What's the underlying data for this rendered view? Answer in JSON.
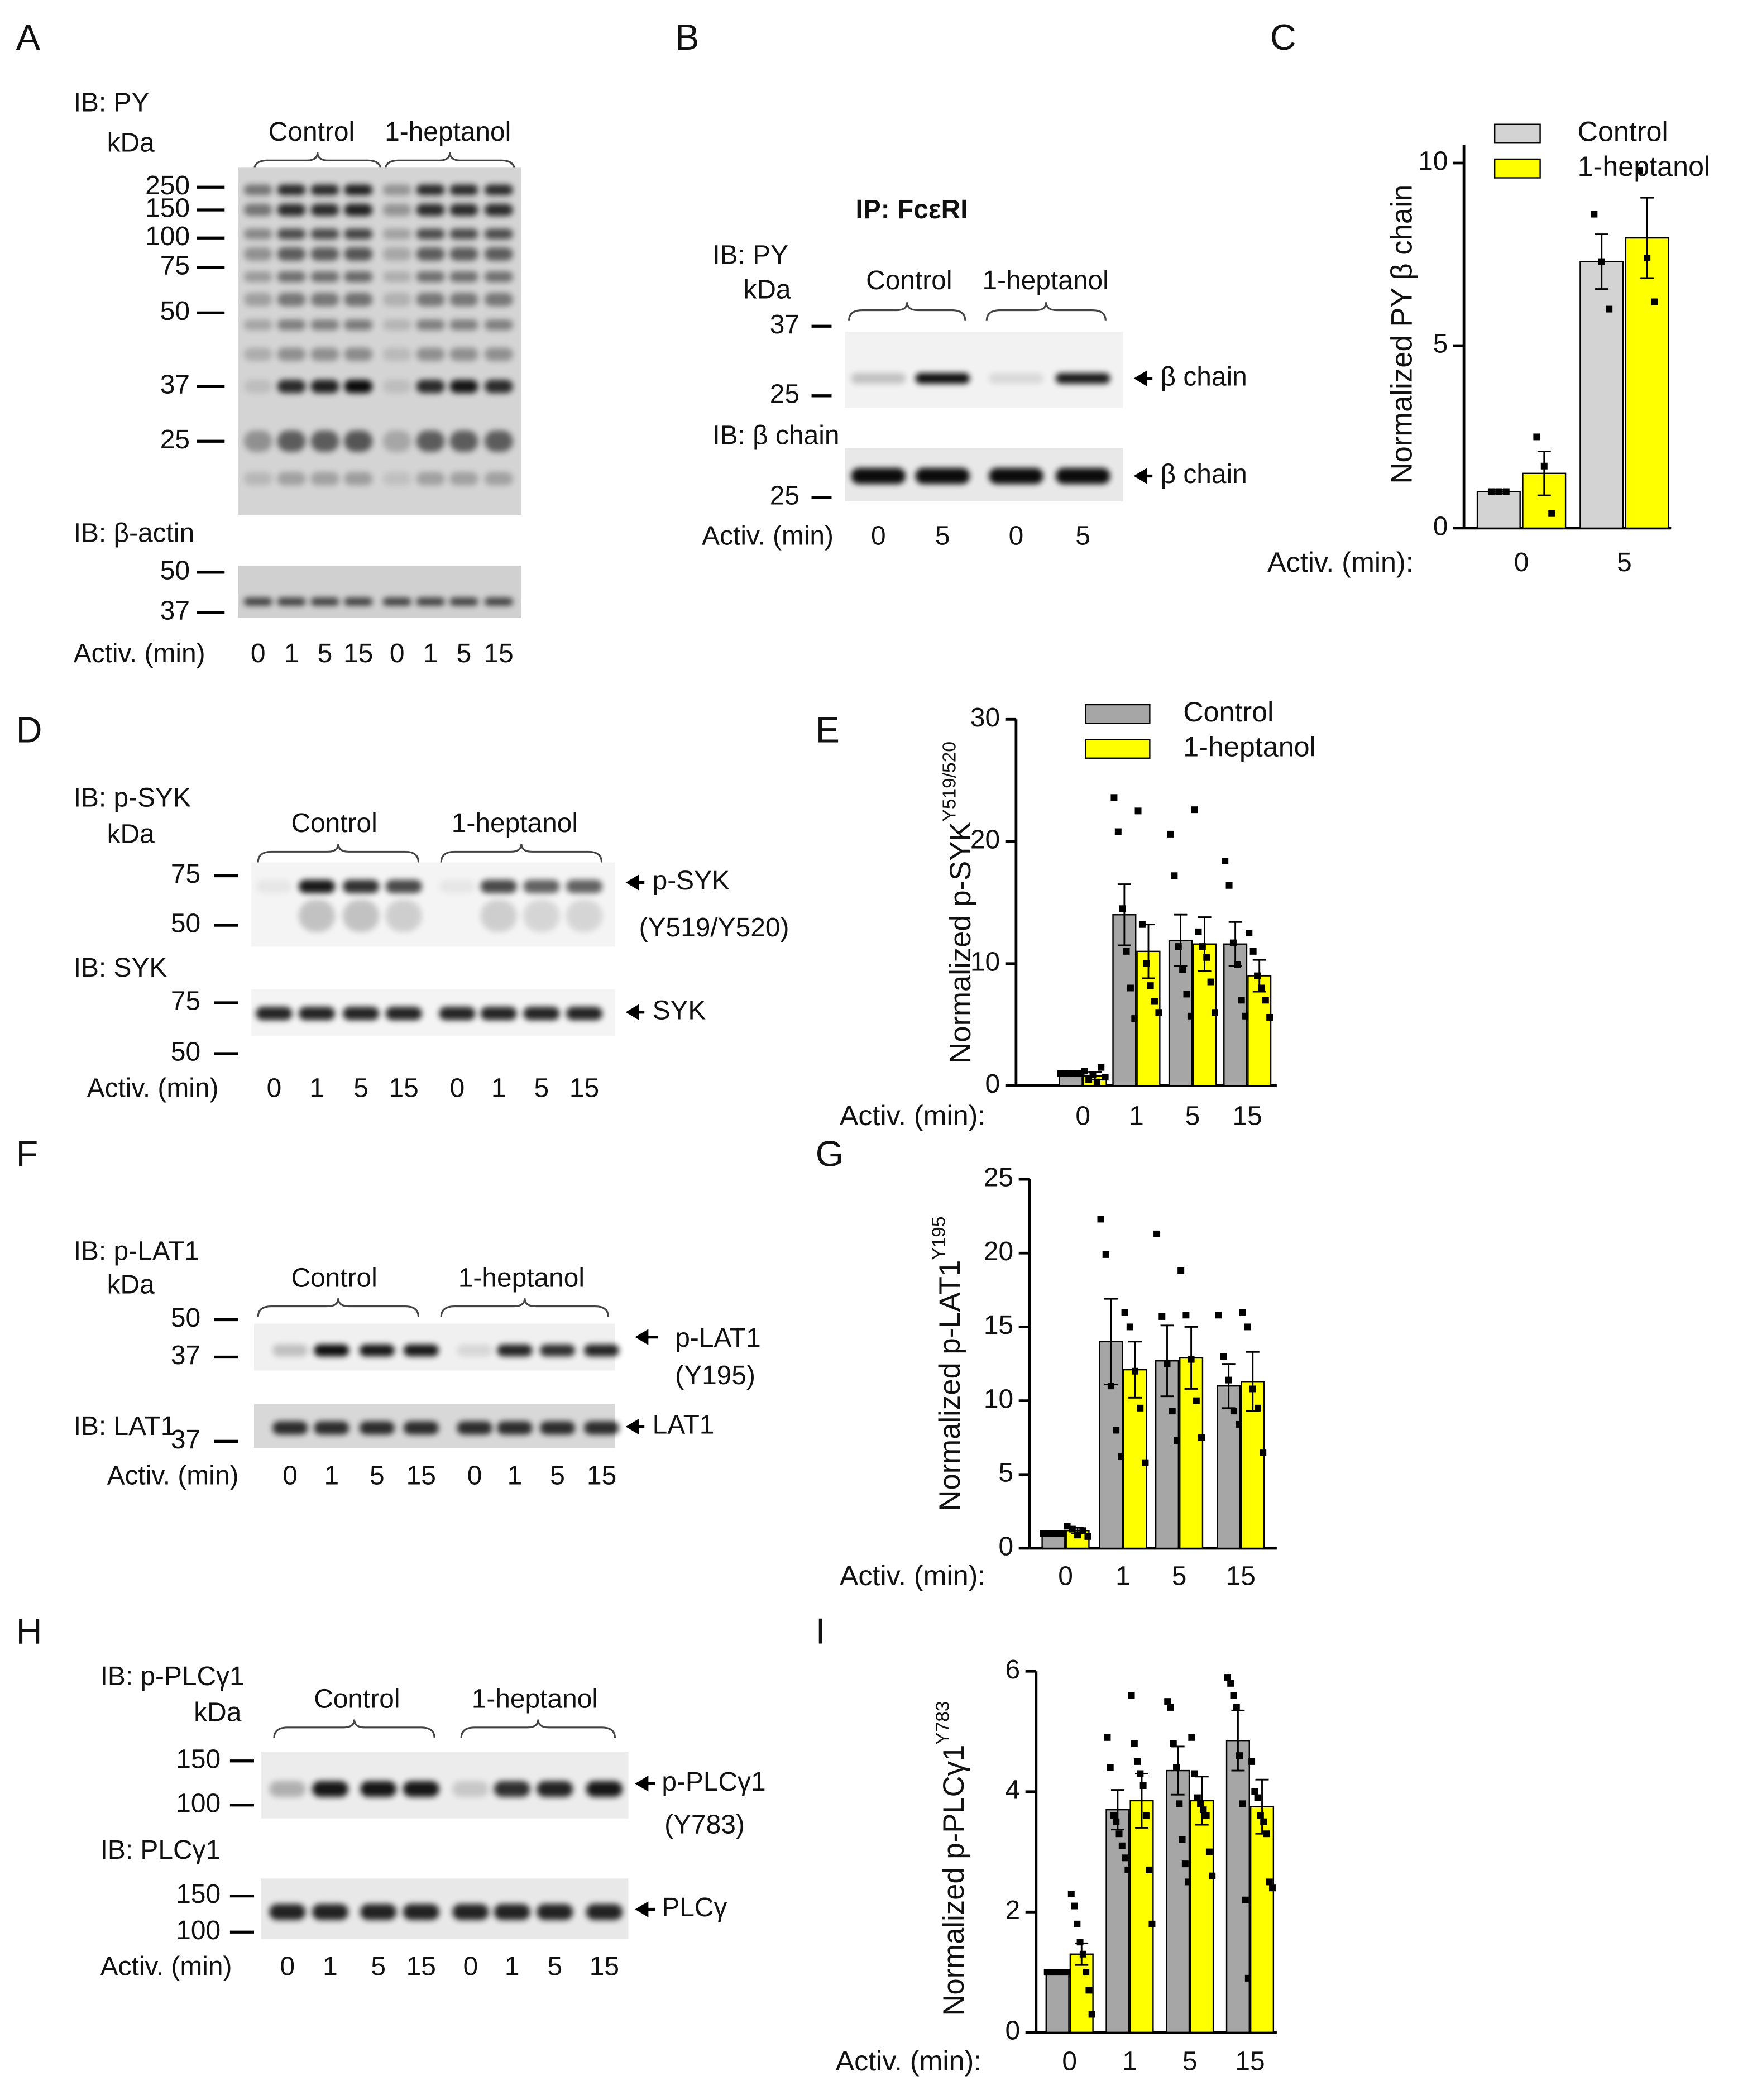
{
  "panels": {
    "A": {
      "label": "A",
      "ib": "IB: PY",
      "kda": "kDa",
      "groups": [
        "Control",
        "1-heptanol"
      ],
      "markers": [
        "250",
        "150",
        "100",
        "75",
        "50",
        "37",
        "25"
      ],
      "ib2": "IB: β-actin",
      "markers2": [
        "50",
        "37"
      ],
      "activ": "Activ. (min)",
      "lanes": [
        "0",
        "1",
        "5",
        "15",
        "0",
        "1",
        "5",
        "15"
      ]
    },
    "B": {
      "label": "B",
      "ip": "IP: FcεRI",
      "ib": "IB: PY",
      "kda": "kDa",
      "groups": [
        "Control",
        "1-heptanol"
      ],
      "markers": [
        "37",
        "25"
      ],
      "target": "β chain",
      "ib2": "IB: β chain",
      "markers2": [
        "25"
      ],
      "target2": "β chain",
      "activ": "Activ. (min)",
      "lanes": [
        "0",
        "5",
        "0",
        "5"
      ]
    },
    "D": {
      "label": "D",
      "ib": "IB: p-SYK",
      "kda": "kDa",
      "groups": [
        "Control",
        "1-heptanol"
      ],
      "markers": [
        "75",
        "50"
      ],
      "target": "p-SYK",
      "site": "(Y519/Y520)",
      "ib2": "IB: SYK",
      "markers2": [
        "75",
        "50"
      ],
      "target2": "SYK",
      "activ": "Activ. (min)",
      "lanes": [
        "0",
        "1",
        "5",
        "15",
        "0",
        "1",
        "5",
        "15"
      ]
    },
    "F": {
      "label": "F",
      "ib": "IB: p-LAT1",
      "kda": "kDa",
      "groups": [
        "Control",
        "1-heptanol"
      ],
      "markers": [
        "50",
        "37"
      ],
      "target": "p-LAT1",
      "site": "(Y195)",
      "ib2": "IB: LAT1",
      "markers2": [
        "37"
      ],
      "target2": "LAT1",
      "activ": "Activ. (min)",
      "lanes": [
        "0",
        "1",
        "5",
        "15",
        "0",
        "1",
        "5",
        "15"
      ]
    },
    "H": {
      "label": "H",
      "ib": "IB: p-PLCγ1",
      "kda": "kDa",
      "groups": [
        "Control",
        "1-heptanol"
      ],
      "markers": [
        "150",
        "100"
      ],
      "target": "p-PLCγ1",
      "site": "(Y783)",
      "ib2": "IB: PLCγ1",
      "markers2": [
        "150",
        "100"
      ],
      "target2": "PLCγ",
      "activ": "Activ. (min)",
      "lanes": [
        "0",
        "1",
        "5",
        "15",
        "0",
        "1",
        "5",
        "15"
      ]
    }
  },
  "chart_data": [
    {
      "type": "bar",
      "panel_label": "C",
      "y_label": "Normalized PY β chain",
      "x_label": "Activ. (min):",
      "categories": [
        "0",
        "5"
      ],
      "ylim": [
        0,
        10.5
      ],
      "yticks": [
        0,
        5,
        10
      ],
      "legend": true,
      "series": [
        {
          "name": "Control",
          "color": "#d3d3d3",
          "values": [
            1.0,
            7.3
          ],
          "errors": [
            0.05,
            0.75
          ],
          "points": [
            [
              1,
              1,
              1
            ],
            [
              8.6,
              7.3,
              6.0
            ]
          ]
        },
        {
          "name": "1-heptanol",
          "color": "#ffff00",
          "values": [
            1.5,
            7.95
          ],
          "errors": [
            0.6,
            1.1
          ],
          "points": [
            [
              2.5,
              1.7,
              0.4
            ],
            [
              9.8,
              7.4,
              6.2
            ]
          ]
        }
      ]
    },
    {
      "type": "bar",
      "panel_label": "E",
      "y_label": "Normalized p-SYK",
      "y_label_sup": "Y519/520",
      "x_label": "Activ. (min):",
      "categories": [
        "0",
        "1",
        "5",
        "15"
      ],
      "ylim": [
        0,
        30
      ],
      "yticks": [
        0,
        10,
        20,
        30
      ],
      "legend": true,
      "series": [
        {
          "name": "Control",
          "color": "#a6a6a6",
          "values": [
            1.0,
            14.0,
            11.9,
            11.6
          ],
          "errors": [
            0.1,
            2.5,
            2.1,
            1.8
          ],
          "points": [
            [
              1,
              1,
              1,
              1,
              1,
              1
            ],
            [
              23.6,
              20.8,
              14.5,
              11.0,
              8.0,
              5.5
            ],
            [
              20.6,
              17.2,
              11.4,
              9.5,
              7.5,
              5.7
            ],
            [
              18.4,
              16.4,
              11.7,
              9.9,
              7.0,
              5.7
            ]
          ]
        },
        {
          "name": "1-heptanol",
          "color": "#ffff00",
          "values": [
            0.8,
            11.0,
            11.6,
            9.0
          ],
          "errors": [
            0.3,
            2.2,
            2.2,
            1.3
          ],
          "points": [
            [
              1.2,
              0.5,
              0.9,
              0.3,
              1.5,
              0.7
            ],
            [
              22.5,
              13.2,
              10.0,
              8.2,
              6.9,
              6.0
            ],
            [
              22.6,
              12.6,
              11.4,
              10.5,
              8.5,
              6.0
            ],
            [
              12.5,
              11.0,
              9.0,
              8.0,
              7.0,
              5.6
            ]
          ]
        }
      ]
    },
    {
      "type": "bar",
      "panel_label": "G",
      "y_label": "Normalized p-LAT1",
      "y_label_sup": "Y195",
      "x_label": "Activ. (min):",
      "categories": [
        "0",
        "1",
        "5",
        "15"
      ],
      "ylim": [
        0,
        25
      ],
      "yticks": [
        0,
        5,
        10,
        15,
        20,
        25
      ],
      "legend": false,
      "series": [
        {
          "color": "#a6a6a6",
          "values": [
            1.0,
            14.0,
            12.7,
            11.0
          ],
          "errors": [
            0.1,
            2.9,
            2.4,
            1.5
          ],
          "points": [
            [
              1,
              1,
              1,
              1,
              1
            ],
            [
              22.3,
              19.9,
              11.0,
              8.0,
              6.2
            ],
            [
              21.3,
              15.7,
              12.5,
              9.3,
              7.3
            ],
            [
              15.8,
              13.0,
              11.4,
              9.3,
              8.4
            ]
          ]
        },
        {
          "color": "#ffff00",
          "values": [
            1.2,
            12.1,
            12.9,
            11.3
          ],
          "errors": [
            0.2,
            1.9,
            2.1,
            2.0
          ],
          "points": [
            [
              1.5,
              1.3,
              0.9,
              1.2,
              0.8
            ],
            [
              16.0,
              15.0,
              12.0,
              9.5,
              5.8
            ],
            [
              18.8,
              15.8,
              12.8,
              10.0,
              7.5
            ],
            [
              16.0,
              15.0,
              10.8,
              9.5,
              6.5
            ]
          ]
        }
      ]
    },
    {
      "type": "bar",
      "panel_label": "I",
      "y_label": "Normalized p-PLCγ1",
      "y_label_sup": "Y783",
      "x_label": "Activ. (min):",
      "categories": [
        "0",
        "1",
        "5",
        "15"
      ],
      "ylim": [
        0,
        6
      ],
      "yticks": [
        0,
        2,
        4,
        6
      ],
      "legend": false,
      "series": [
        {
          "color": "#a6a6a6",
          "values": [
            1.0,
            3.7,
            4.35,
            4.85
          ],
          "errors": [
            0.02,
            0.33,
            0.4,
            0.5
          ],
          "points": [
            [
              1,
              1,
              1,
              1,
              1,
              1,
              1,
              1
            ],
            [
              4.9,
              4.4,
              3.6,
              3.5,
              3.3,
              3.1,
              2.9,
              2.7
            ],
            [
              5.5,
              5.4,
              4.8,
              4.4,
              3.8,
              3.2,
              2.8,
              2.5
            ],
            [
              5.9,
              5.8,
              5.6,
              5.4,
              4.6,
              3.8,
              2.2,
              0.9
            ]
          ]
        },
        {
          "color": "#ffff00",
          "values": [
            1.3,
            3.85,
            3.85,
            3.75
          ],
          "errors": [
            0.18,
            0.45,
            0.4,
            0.45
          ],
          "points": [
            [
              2.3,
              2.1,
              1.8,
              1.5,
              1.3,
              1.0,
              0.7,
              0.3
            ],
            [
              5.6,
              4.8,
              4.5,
              4.3,
              4.1,
              3.6,
              2.7,
              1.8
            ],
            [
              4.9,
              4.3,
              3.9,
              3.8,
              3.7,
              3.6,
              3.0,
              2.6
            ],
            [
              4.5,
              4.0,
              3.9,
              3.6,
              3.5,
              3.3,
              2.5,
              2.4
            ]
          ]
        }
      ]
    }
  ]
}
